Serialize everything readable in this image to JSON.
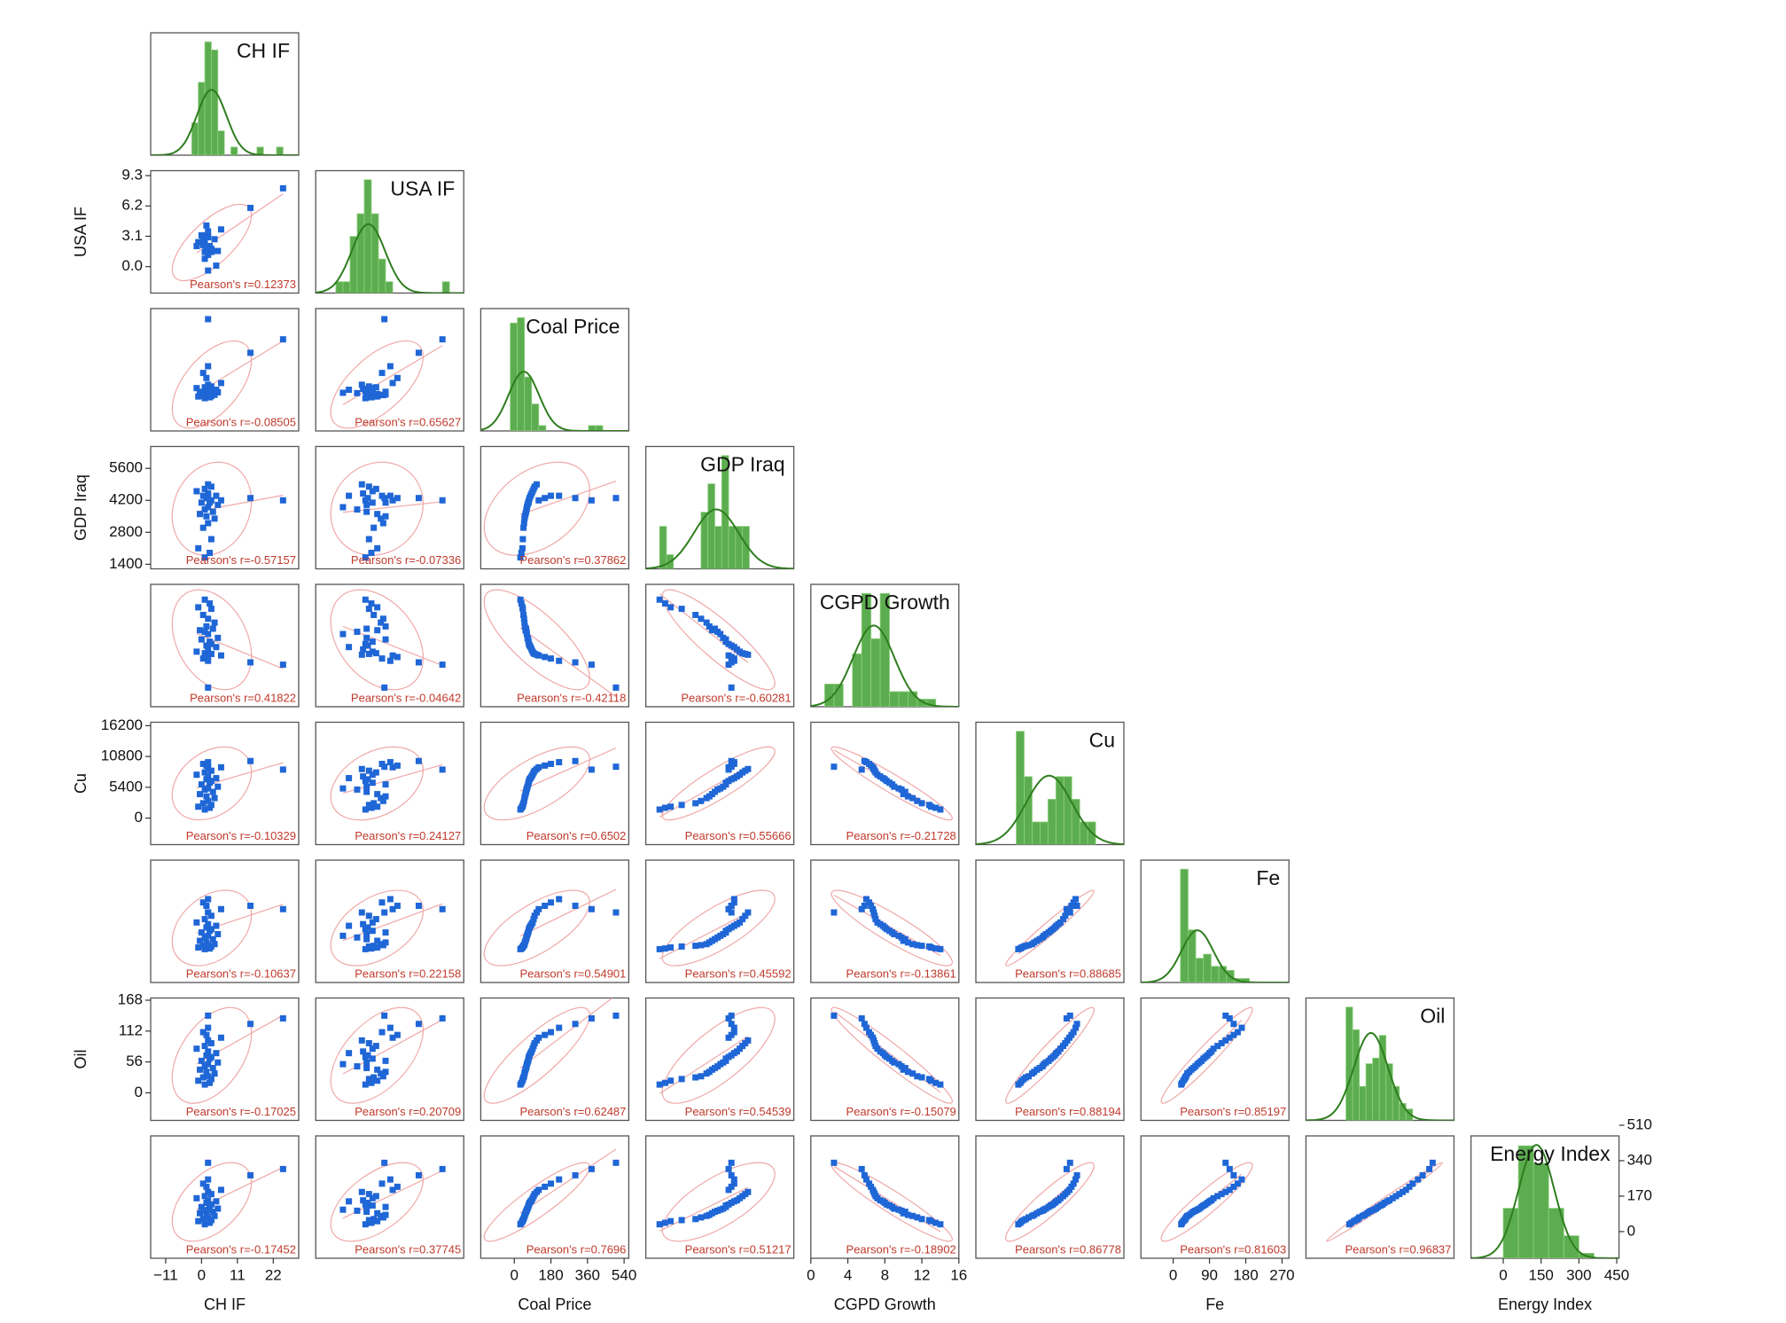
{
  "chart_data": {
    "type": "pair",
    "colors": {
      "hist": "#5cad4f",
      "curve": "#2e7d1e",
      "points": "#1f66d6",
      "ellipse": "#f0a8a8",
      "pearson": "#c0392b"
    },
    "variables": [
      {
        "name": "CH IF",
        "lim": [
          -15.6,
          29.8
        ],
        "xticks": [
          {
            "value": -11,
            "label": "−11"
          },
          0,
          11,
          22
        ],
        "values": [
          1.0,
          2.5,
          -1.0,
          3.0,
          0.5,
          2.0,
          4.0,
          1.5,
          -0.5,
          3.5,
          1.0,
          2.0,
          5.0,
          0.0,
          2.5,
          3.0,
          1.5,
          4.5,
          2.0,
          -1.5,
          1.0,
          3.0,
          2.0,
          6.0,
          1.5,
          0.5,
          2.0,
          15,
          25,
          2.0
        ],
        "hist": {
          "bins": [
            -3,
            -1,
            1,
            3,
            5,
            7,
            9,
            11,
            13,
            15,
            17,
            19,
            21,
            23,
            25
          ],
          "counts": [
            4,
            9,
            14,
            13,
            3,
            0,
            1,
            0,
            0,
            0,
            1,
            0,
            0,
            1
          ]
        }
      },
      {
        "name": "USA IF",
        "lim": [
          -2.7,
          9.8
        ],
        "yticks": [
          {
            "value": 0,
            "label": "0.0"
          },
          3.1,
          6.2,
          9.3
        ],
        "values": [
          1.5,
          2.0,
          2.5,
          1.8,
          2.2,
          3.0,
          2.8,
          3.2,
          2.5,
          1.6,
          0.8,
          -0.4,
          1.6,
          3.2,
          2.1,
          1.5,
          1.7,
          0.1,
          1.3,
          2.1,
          2.4,
          1.8,
          1.2,
          3.8,
          4.2,
          2.9,
          3.6,
          6.0,
          8.0,
          3.1
        ],
        "hist": {
          "bins": [
            -1,
            -0.4,
            0.2,
            0.8,
            1.4,
            2,
            2.6,
            3.2,
            3.8,
            4.4,
            5,
            5.6,
            6.2,
            6.8,
            7.4,
            8,
            8.6
          ],
          "counts": [
            1,
            1,
            5,
            7,
            10,
            7,
            3,
            1,
            0,
            0,
            0,
            0,
            0,
            0,
            0,
            1
          ]
        }
      },
      {
        "name": "Coal Price",
        "lim": [
          -165,
          563
        ],
        "xticks": [
          0,
          180,
          360,
          540
        ],
        "values": [
          30,
          35,
          40,
          42,
          45,
          48,
          50,
          52,
          55,
          58,
          60,
          62,
          65,
          68,
          70,
          72,
          75,
          80,
          85,
          90,
          95,
          100,
          110,
          120,
          150,
          180,
          220,
          300,
          380,
          500
        ],
        "hist": {
          "bins": [
            -20,
            15,
            50,
            85,
            120,
            155,
            190,
            225,
            260,
            295,
            330,
            365,
            400,
            435,
            470
          ],
          "counts": [
            20,
            21,
            10,
            5,
            1,
            0,
            0,
            0,
            0,
            0,
            0,
            1,
            1,
            0
          ]
        }
      },
      {
        "name": "GDP Iraq",
        "lim": [
          1200,
          6560
        ],
        "yticks": [
          1400,
          2800,
          4200,
          5600
        ],
        "values": [
          1700,
          1900,
          2100,
          2500,
          3000,
          3200,
          3400,
          3500,
          3600,
          3700,
          3800,
          3900,
          4000,
          4100,
          4100,
          4200,
          4300,
          4400,
          4500,
          4600,
          4700,
          4800,
          4900,
          4200,
          4300,
          4400,
          4400,
          4300,
          4200,
          4300
        ],
        "hist": {
          "bins": [
            1700,
            1950,
            2200,
            2450,
            2700,
            2950,
            3200,
            3450,
            3700,
            3950,
            4200,
            4450,
            4700,
            4950
          ],
          "counts": [
            3,
            1,
            0,
            0,
            0,
            0,
            4,
            6,
            3,
            8,
            3,
            3,
            3
          ]
        }
      },
      {
        "name": "CGPD Growth",
        "lim": [
          0,
          16
        ],
        "xticks": [
          0,
          4,
          8,
          12,
          16
        ],
        "values": [
          14,
          13.5,
          13,
          12.8,
          12,
          11.5,
          11,
          10.5,
          10,
          10.2,
          9.8,
          9.5,
          9,
          8.8,
          8.5,
          8.2,
          8,
          7.8,
          7.5,
          7.2,
          7,
          6.9,
          6.8,
          6.7,
          6.5,
          6.3,
          6,
          5.8,
          5.5,
          2.5
        ],
        "hist": {
          "bins": [
            1.5,
            2.5,
            3.5,
            4.5,
            5.5,
            6.5,
            7.5,
            8.5,
            9.5,
            10.5,
            11.5,
            12.5,
            13.5,
            14.5
          ],
          "counts": [
            3,
            3,
            0,
            7,
            15,
            9,
            15,
            2,
            2,
            2,
            1,
            1,
            0
          ]
        }
      },
      {
        "name": "Cu",
        "lim": [
          -4650,
          16800
        ],
        "yticks": [
          0,
          5400,
          10800,
          16200
        ],
        "values": [
          1500,
          1800,
          2000,
          2300,
          2600,
          3000,
          3500,
          3800,
          4200,
          4600,
          5000,
          5200,
          5500,
          5900,
          6200,
          6500,
          6800,
          7000,
          7300,
          7600,
          8000,
          8300,
          8600,
          8900,
          9200,
          9500,
          9800,
          10000,
          8500,
          9000
        ],
        "hist": {
          "bins": [
            1200,
            2350,
            3500,
            4650,
            5800,
            6950,
            8100,
            9250,
            10400,
            11550,
            12700
          ],
          "counts": [
            25,
            15,
            5,
            5,
            10,
            15,
            15,
            10,
            5,
            5
          ]
        }
      },
      {
        "name": "Fe",
        "lim": [
          -80,
          287
        ],
        "xticks": [
          0,
          90,
          180,
          270
        ],
        "values": [
          20,
          22,
          25,
          28,
          30,
          32,
          35,
          40,
          45,
          50,
          55,
          60,
          65,
          70,
          75,
          80,
          85,
          90,
          95,
          100,
          110,
          120,
          130,
          140,
          150,
          160,
          170,
          150,
          140,
          130
        ],
        "hist": {
          "bins": [
            18,
            37,
            56,
            75,
            94,
            113,
            132,
            151,
            170,
            189
          ],
          "counts": [
            28,
            13,
            6,
            7,
            4,
            4,
            3,
            1,
            1
          ]
        }
      },
      {
        "name": "Oil",
        "lim": [
          -50,
          172
        ],
        "yticks": [
          0,
          56,
          112,
          168
        ],
        "values": [
          15,
          18,
          22,
          25,
          28,
          30,
          35,
          38,
          42,
          45,
          48,
          52,
          55,
          58,
          62,
          65,
          68,
          72,
          75,
          80,
          85,
          90,
          95,
          100,
          105,
          110,
          118,
          125,
          135,
          140
        ],
        "hist": {
          "bins": [
            10,
            20,
            30,
            40,
            50,
            60,
            70,
            80,
            90,
            100,
            110
          ],
          "counts": [
            20,
            16,
            6,
            10,
            11,
            15,
            10,
            6,
            3,
            2
          ]
        }
      },
      {
        "name": "Energy Index",
        "lim": [
          -128,
          459
        ],
        "xticks": [
          0,
          150,
          300,
          450
        ],
        "yticks": [
          0,
          170,
          340,
          510
        ],
        "values": [
          35,
          42,
          50,
          55,
          60,
          68,
          75,
          80,
          88,
          95,
          100,
          105,
          110,
          118,
          125,
          130,
          138,
          145,
          150,
          160,
          170,
          180,
          190,
          200,
          215,
          230,
          250,
          270,
          300,
          330
        ],
        "hist": {
          "bins": [
            0,
            60,
            120,
            180,
            240,
            300,
            360
          ],
          "counts": [
            20,
            45,
            38,
            20,
            9,
            2
          ]
        }
      }
    ],
    "pearson": [
      [
        "Pearson's r=0.12373"
      ],
      [
        "Pearson's r=-0.08505",
        "Pearson's r=0.65627"
      ],
      [
        "Pearson's r=-0.57157",
        "Pearson's r=-0.07336",
        "Pearson's r=0.37862"
      ],
      [
        "Pearson's r=0.41822",
        "Pearson's r=-0.04642",
        "Pearson's r=-0.42118",
        "Pearson's r=-0.60281"
      ],
      [
        "Pearson's r=-0.10329",
        "Pearson's r=0.24127",
        "Pearson's r=0.6502",
        "Pearson's r=0.55666",
        "Pearson's r=-0.21728"
      ],
      [
        "Pearson's r=-0.10637",
        "Pearson's r=0.22158",
        "Pearson's r=0.54901",
        "Pearson's r=0.45592",
        "Pearson's r=-0.13861",
        "Pearson's r=0.88685"
      ],
      [
        "Pearson's r=-0.17025",
        "Pearson's r=0.20709",
        "Pearson's r=0.62487",
        "Pearson's r=0.54539",
        "Pearson's r=-0.15079",
        "Pearson's r=0.88194",
        "Pearson's r=0.85197"
      ],
      [
        "Pearson's r=-0.17452",
        "Pearson's r=0.37745",
        "Pearson's r=0.7696",
        "Pearson's r=0.51217",
        "Pearson's r=-0.18902",
        "Pearson's r=0.86778",
        "Pearson's r=0.81603",
        "Pearson's r=0.96837"
      ]
    ]
  }
}
